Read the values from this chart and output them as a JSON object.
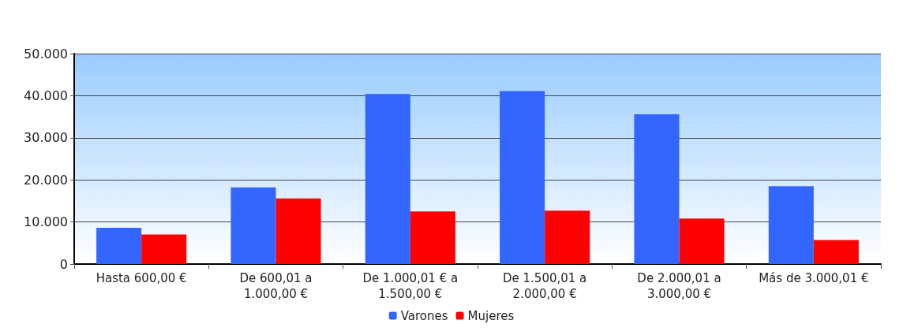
{
  "chart_data": {
    "type": "bar",
    "categories": [
      "Hasta 600,00 €",
      "De 600,01 a\n1.000,00 €",
      "De 1.000,01 € a\n1.500,00 €",
      "De 1.500,01 a\n2.000,00 €",
      "De 2.000,01 a\n3.000,00 €",
      "Más de 3.000,01 €"
    ],
    "series": [
      {
        "name": "Varones",
        "color": "#3366ff",
        "values": [
          8600,
          18200,
          40400,
          41100,
          35600,
          18500
        ]
      },
      {
        "name": "Mujeres",
        "color": "#ff0000",
        "values": [
          7000,
          15600,
          12500,
          12700,
          10800,
          5700
        ]
      }
    ],
    "ylim": [
      0,
      50000
    ],
    "yticks": [
      {
        "value": 0,
        "label": "0"
      },
      {
        "value": 10000,
        "label": "10.000"
      },
      {
        "value": 20000,
        "label": "20.000"
      },
      {
        "value": 30000,
        "label": "30.000"
      },
      {
        "value": 40000,
        "label": "40.000"
      },
      {
        "value": 50000,
        "label": "50.000"
      }
    ],
    "grid": "y",
    "legend": "bottom"
  }
}
